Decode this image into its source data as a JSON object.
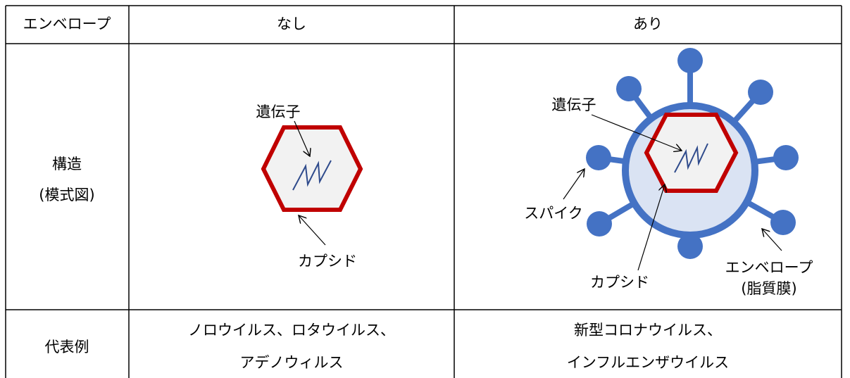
{
  "header": {
    "cells": [
      "エンベロープ",
      "なし",
      "あり"
    ]
  },
  "structure_row": {
    "label_lines": [
      "構造",
      "(模式図)"
    ],
    "none_diagram": {
      "gene": "遺伝子",
      "capsid": "カプシド"
    },
    "enveloped_diagram": {
      "gene": "遺伝子",
      "spike": "スパイク",
      "capsid": "カプシド",
      "envelope_lines": [
        "エンベロープ",
        "(脂質膜)"
      ]
    }
  },
  "examples_row": {
    "label": "代表例",
    "none_lines": [
      "ノロウイルス、ロタウイルス、",
      "アデノウィルス"
    ],
    "enveloped_lines": [
      "新型コロナウイルス、",
      "インフルエンザウイルス"
    ]
  }
}
